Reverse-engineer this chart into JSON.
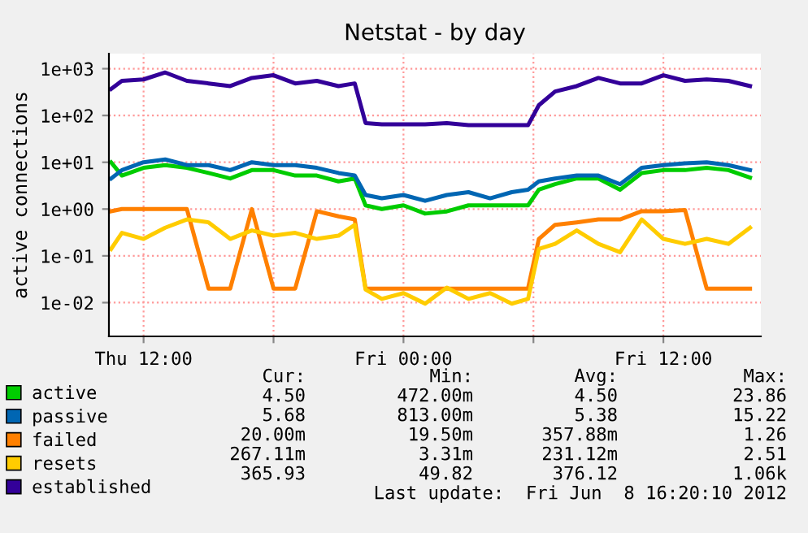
{
  "chart_data": {
    "type": "line",
    "title": "Netstat - by day",
    "ylabel": "active connections",
    "log": true,
    "grid": true,
    "legend": "bottom",
    "x": [
      "2012-06-07T10:30",
      "2012-06-07T11:00",
      "2012-06-07T12:00",
      "2012-06-07T13:00",
      "2012-06-07T14:00",
      "2012-06-07T15:00",
      "2012-06-07T16:00",
      "2012-06-07T17:00",
      "2012-06-07T18:00",
      "2012-06-07T19:00",
      "2012-06-07T20:00",
      "2012-06-07T21:00",
      "2012-06-07T21:45",
      "2012-06-07T22:15",
      "2012-06-07T23:00",
      "2012-06-08T00:00",
      "2012-06-08T01:00",
      "2012-06-08T02:00",
      "2012-06-08T03:00",
      "2012-06-08T04:00",
      "2012-06-08T05:00",
      "2012-06-08T05:45",
      "2012-06-08T06:15",
      "2012-06-08T07:00",
      "2012-06-08T08:00",
      "2012-06-08T09:00",
      "2012-06-08T10:00",
      "2012-06-08T11:00",
      "2012-06-08T12:00",
      "2012-06-08T13:00",
      "2012-06-08T14:00",
      "2012-06-08T15:00",
      "2012-06-08T16:00"
    ],
    "series": [
      {
        "name": "active",
        "color": "#00cc00",
        "values": [
          10,
          5.2,
          7.6,
          8.7,
          7.6,
          5.9,
          4.5,
          6.8,
          6.8,
          5.2,
          5.2,
          3.9,
          4.5,
          1.2,
          1.0,
          1.2,
          0.8,
          0.89,
          1.2,
          1.2,
          1.2,
          1.2,
          2.6,
          3.4,
          4.5,
          4.5,
          2.6,
          5.9,
          6.8,
          6.8,
          7.6,
          6.8,
          4.7
        ]
      },
      {
        "name": "passive",
        "color": "#0066b3",
        "values": [
          4.5,
          6.8,
          10,
          11.5,
          8.7,
          8.7,
          6.8,
          10,
          8.7,
          8.7,
          7.6,
          5.9,
          5.2,
          2.0,
          1.7,
          2.0,
          1.5,
          2.0,
          2.3,
          1.7,
          2.3,
          2.6,
          3.9,
          4.5,
          5.2,
          5.2,
          3.4,
          7.6,
          8.7,
          9.5,
          10,
          8.7,
          6.8
        ]
      },
      {
        "name": "failed",
        "color": "#ff8000",
        "values": [
          0.9,
          1.0,
          1.0,
          1.0,
          1.0,
          0.02,
          0.02,
          1.0,
          0.02,
          0.02,
          0.9,
          0.7,
          0.6,
          0.02,
          0.02,
          0.02,
          0.02,
          0.02,
          0.02,
          0.02,
          0.02,
          0.02,
          0.23,
          0.46,
          0.52,
          0.6,
          0.6,
          0.9,
          0.9,
          0.95,
          0.02,
          0.02,
          0.02
        ]
      },
      {
        "name": "resets",
        "color": "#ffcc00",
        "values": [
          0.14,
          0.31,
          0.23,
          0.4,
          0.6,
          0.52,
          0.23,
          0.35,
          0.27,
          0.31,
          0.23,
          0.27,
          0.46,
          0.019,
          0.012,
          0.016,
          0.0095,
          0.021,
          0.012,
          0.016,
          0.0095,
          0.012,
          0.14,
          0.18,
          0.35,
          0.18,
          0.12,
          0.6,
          0.23,
          0.18,
          0.23,
          0.18,
          0.4
        ]
      },
      {
        "name": "established",
        "color": "#330099",
        "values": [
          370,
          550,
          590,
          830,
          550,
          485,
          425,
          635,
          725,
          485,
          550,
          425,
          485,
          69,
          65,
          65,
          65,
          69,
          62,
          62,
          62,
          62,
          166,
          325,
          425,
          635,
          485,
          485,
          725,
          550,
          590,
          550,
          425
        ]
      }
    ],
    "xlim": [
      "2012-06-07T10:24",
      "2012-06-08T16:30"
    ],
    "xticks": [
      {
        "value": "2012-06-07T12:00",
        "label": "Thu 12:00"
      },
      {
        "value": "2012-06-07T18:00",
        "label": null
      },
      {
        "value": "2012-06-08T00:00",
        "label": "Fri 00:00"
      },
      {
        "value": "2012-06-08T06:00",
        "label": null
      },
      {
        "value": "2012-06-08T12:00",
        "label": "Fri 12:00"
      }
    ],
    "ylim": [
      0.0019,
      2100
    ],
    "yticks": [
      {
        "value": 0.01,
        "label": "1e-02"
      },
      {
        "value": 0.1,
        "label": "1e-01"
      },
      {
        "value": 1,
        "label": "1e+00"
      },
      {
        "value": 10,
        "label": "1e+01"
      },
      {
        "value": 100,
        "label": "1e+02"
      },
      {
        "value": 1000,
        "label": "1e+03"
      }
    ],
    "annotations": [
      "Cur:",
      "Min:",
      "Avg:",
      "Max:",
      "4.50",
      "472.00m",
      "4.50",
      "23.86",
      "5.68",
      "813.00m",
      "5.38",
      "15.22",
      "20.00m",
      "19.50m",
      "357.88m",
      "1.26",
      "267.11m",
      "3.31m",
      "231.12m",
      "2.51",
      "365.93",
      "49.82",
      "376.12",
      "1.06k",
      "Last update:  Fri Jun  8 16:20:10 2012"
    ]
  }
}
